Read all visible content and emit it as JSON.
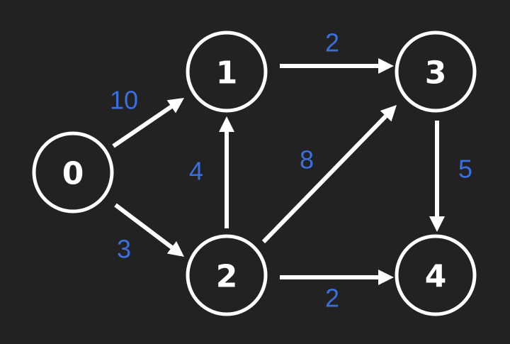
{
  "colors": {
    "background": "#222222",
    "node_stroke": "#ffffff",
    "edge": "#ffffff",
    "weight": "#3a6fe0"
  },
  "graph": {
    "nodes": [
      {
        "id": "0",
        "label": "0"
      },
      {
        "id": "1",
        "label": "1"
      },
      {
        "id": "2",
        "label": "2"
      },
      {
        "id": "3",
        "label": "3"
      },
      {
        "id": "4",
        "label": "4"
      }
    ],
    "edges": [
      {
        "from": "0",
        "to": "1",
        "weight": "10"
      },
      {
        "from": "0",
        "to": "2",
        "weight": "3"
      },
      {
        "from": "2",
        "to": "1",
        "weight": "4"
      },
      {
        "from": "1",
        "to": "3",
        "weight": "2"
      },
      {
        "from": "2",
        "to": "3",
        "weight": "8"
      },
      {
        "from": "2",
        "to": "4",
        "weight": "2"
      },
      {
        "from": "3",
        "to": "4",
        "weight": "5"
      }
    ]
  }
}
